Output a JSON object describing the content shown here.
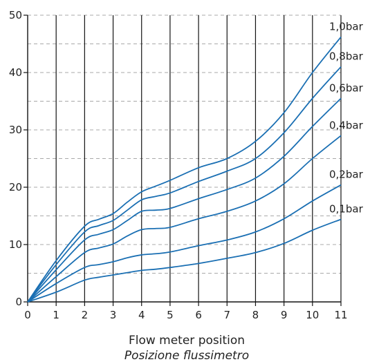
{
  "chart_data": {
    "type": "line",
    "title": "",
    "xlabel": "Flow meter position",
    "xlabel_secondary": "Posizione flussimetro",
    "ylabel": "",
    "xlim": [
      0,
      11
    ],
    "ylim": [
      0,
      50
    ],
    "x_ticks": [
      0,
      1,
      2,
      3,
      4,
      5,
      6,
      7,
      8,
      9,
      10,
      11
    ],
    "y_ticks": [
      0,
      10,
      20,
      30,
      40,
      50
    ],
    "y_minor_dashed": [
      5,
      15,
      25,
      35,
      45
    ],
    "grid": {
      "vertical": "solid",
      "horizontal_major": "dashed",
      "horizontal_minor": "dashed"
    },
    "line_color": "#1a6fb3",
    "x": [
      0,
      1,
      2,
      2.5,
      3,
      3.5,
      4,
      4.5,
      5,
      6,
      7,
      8,
      9,
      10,
      11
    ],
    "series": [
      {
        "name": "1,0bar",
        "values": [
          0,
          7.2,
          13.2,
          14.4,
          15.4,
          17.4,
          19.2,
          20.2,
          21.2,
          23.4,
          25.0,
          28.0,
          33.0,
          40.0,
          46.2
        ]
      },
      {
        "name": "0,8bar",
        "values": [
          0,
          6.5,
          12.2,
          13.3,
          14.2,
          16.0,
          17.8,
          18.4,
          19.0,
          21.0,
          22.8,
          25.0,
          29.5,
          35.5,
          41.0
        ]
      },
      {
        "name": "0,6bar",
        "values": [
          0,
          5.6,
          10.8,
          11.8,
          12.6,
          14.2,
          15.8,
          16.0,
          16.3,
          18.0,
          19.6,
          21.6,
          25.4,
          30.6,
          35.5
        ]
      },
      {
        "name": "0,4bar",
        "values": [
          0,
          4.4,
          8.6,
          9.4,
          10.1,
          11.5,
          12.6,
          12.8,
          13.0,
          14.5,
          15.8,
          17.6,
          20.6,
          25.0,
          29.0
        ]
      },
      {
        "name": "0,2bar",
        "values": [
          0,
          3.2,
          6.0,
          6.5,
          7.0,
          7.7,
          8.2,
          8.4,
          8.7,
          9.8,
          10.8,
          12.2,
          14.5,
          17.6,
          20.4
        ]
      },
      {
        "name": "0,1bar",
        "values": [
          0,
          1.7,
          3.8,
          4.3,
          4.7,
          5.1,
          5.5,
          5.7,
          6.0,
          6.7,
          7.6,
          8.6,
          10.2,
          12.5,
          14.4
        ]
      }
    ]
  }
}
